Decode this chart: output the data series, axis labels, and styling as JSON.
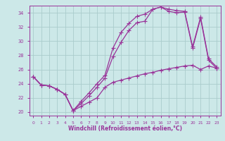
{
  "xlabel": "Windchill (Refroidissement éolien,°C)",
  "background_color": "#cce8e8",
  "line_color": "#993399",
  "grid_color": "#aacccc",
  "xlim": [
    -0.5,
    23.5
  ],
  "ylim": [
    19.5,
    35.0
  ],
  "xticks": [
    0,
    1,
    2,
    3,
    4,
    5,
    6,
    7,
    8,
    9,
    10,
    11,
    12,
    13,
    14,
    15,
    16,
    17,
    18,
    19,
    20,
    21,
    22,
    23
  ],
  "yticks": [
    20,
    22,
    24,
    26,
    28,
    30,
    32,
    34
  ],
  "series1_x": [
    0,
    1,
    2,
    3,
    4,
    5,
    6,
    7,
    8,
    9,
    10,
    11,
    12,
    13,
    14,
    15,
    16,
    17,
    18,
    19,
    20,
    21,
    22,
    23
  ],
  "series1_y": [
    25.0,
    23.8,
    23.7,
    23.2,
    22.5,
    20.2,
    20.8,
    21.4,
    22.0,
    23.5,
    24.2,
    24.5,
    24.8,
    25.1,
    25.4,
    25.6,
    25.9,
    26.1,
    26.3,
    26.5,
    26.6,
    26.0,
    26.5,
    26.2
  ],
  "series2_x": [
    0,
    1,
    2,
    3,
    4,
    5,
    6,
    7,
    8,
    9,
    10,
    11,
    12,
    13,
    14,
    15,
    16,
    17,
    18,
    19,
    20,
    21,
    22,
    23
  ],
  "series2_y": [
    25.0,
    23.8,
    23.7,
    23.2,
    22.5,
    20.2,
    21.2,
    22.3,
    23.5,
    24.8,
    27.8,
    29.8,
    31.5,
    32.6,
    32.8,
    34.5,
    34.8,
    34.2,
    34.0,
    34.1,
    29.0,
    33.2,
    27.3,
    26.2
  ],
  "series3_x": [
    0,
    1,
    2,
    3,
    4,
    5,
    6,
    7,
    8,
    9,
    10,
    11,
    12,
    13,
    14,
    15,
    16,
    17,
    18,
    19,
    20,
    21,
    22,
    23
  ],
  "series3_y": [
    25.0,
    23.8,
    23.7,
    23.2,
    22.5,
    20.2,
    21.5,
    22.7,
    24.0,
    25.2,
    29.0,
    31.2,
    32.5,
    33.5,
    33.8,
    34.5,
    34.8,
    34.5,
    34.3,
    34.2,
    29.2,
    33.4,
    27.5,
    26.4
  ]
}
